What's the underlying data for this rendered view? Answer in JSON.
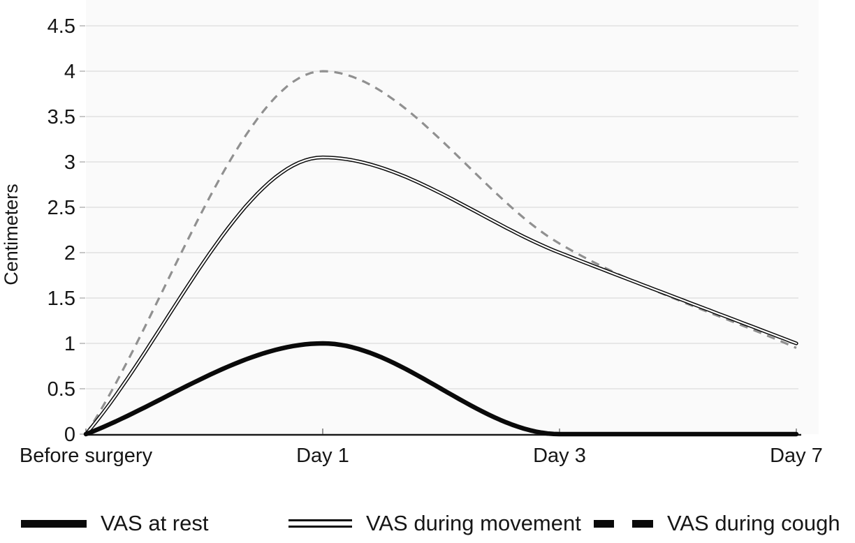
{
  "chart_data": {
    "type": "line",
    "title": "",
    "categories": [
      "Before surgery",
      "Day 1",
      "Day 3",
      "Day 7"
    ],
    "series": [
      {
        "name": "VAS at rest",
        "values": [
          0,
          1.0,
          0,
          0
        ],
        "style": "thick-solid",
        "color": "#0a0a0a"
      },
      {
        "name": "VAS during movement",
        "values": [
          0,
          3.05,
          2.0,
          1.0
        ],
        "style": "double-line",
        "color": "#0a0a0a"
      },
      {
        "name": "VAS during cough",
        "values": [
          0,
          4.0,
          2.1,
          0.95
        ],
        "style": "dashed",
        "color": "#909090"
      }
    ],
    "xlabel": "",
    "ylabel": "Centimeters",
    "ylim": [
      0,
      4.5
    ],
    "yticks": [
      "0",
      "0.5",
      "1",
      "1.5",
      "2",
      "2.5",
      "3",
      "3.5",
      "4",
      "4.5"
    ],
    "grid": true,
    "legend_position": "bottom",
    "colors": {
      "plot_bg": "#fafafa",
      "grid": "#dcdcdc",
      "axis": "#1a1a1a",
      "tick": "#c8c8c8",
      "text": "#161616"
    }
  }
}
